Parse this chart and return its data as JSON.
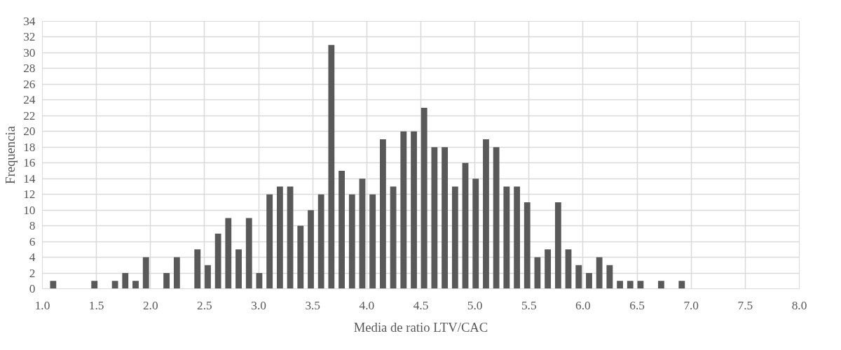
{
  "chart_data": {
    "type": "histogram",
    "xlabel": "Media de ratio LTV/CAC",
    "ylabel": "Frequencia",
    "color": "#595959",
    "bins": [
      1.052,
      1.147,
      1.243,
      1.338,
      1.433,
      1.529,
      1.624,
      1.719,
      1.814,
      1.91,
      2.005,
      2.1,
      2.196,
      2.291,
      2.386,
      2.482,
      2.577,
      2.672,
      2.767,
      2.863,
      2.958,
      3.053,
      3.149,
      3.244,
      3.339,
      3.435,
      3.53,
      3.625,
      3.72,
      3.816,
      3.911,
      4.006,
      4.102,
      4.197,
      4.292,
      4.388,
      4.483,
      4.578,
      4.673,
      4.769,
      4.864,
      4.959,
      5.055,
      5.15,
      5.245,
      5.341,
      5.436,
      5.531,
      5.626,
      5.722,
      5.817,
      5.912,
      6.008,
      6.103,
      6.198,
      6.294,
      6.389,
      6.484,
      6.579,
      6.675,
      6.77,
      6.865,
      6.961
    ],
    "values": [
      1,
      0,
      0,
      0,
      1,
      0,
      1,
      2,
      1,
      4,
      0,
      2,
      4,
      0,
      5,
      3,
      7,
      9,
      5,
      9,
      2,
      12,
      13,
      13,
      8,
      10,
      12,
      31,
      15,
      12,
      14,
      12,
      19,
      13,
      20,
      20,
      23,
      18,
      18,
      13,
      16,
      14,
      19,
      18,
      13,
      13,
      11,
      4,
      5,
      11,
      5,
      3,
      2,
      4,
      3,
      1,
      1,
      1,
      0,
      1,
      0,
      1
    ],
    "xlim": [
      1.0,
      8.0
    ],
    "xticks": [
      {
        "value": 1.0,
        "label": "1.0"
      },
      {
        "value": 1.5,
        "label": "1.5"
      },
      {
        "value": 2.0,
        "label": "2.0"
      },
      {
        "value": 2.5,
        "label": "2.5"
      },
      {
        "value": 3.0,
        "label": "3.0"
      },
      {
        "value": 3.5,
        "label": "3.5"
      },
      {
        "value": 4.0,
        "label": "4.0"
      },
      {
        "value": 4.5,
        "label": "4.5"
      },
      {
        "value": 5.0,
        "label": "5.0"
      },
      {
        "value": 5.5,
        "label": "5.5"
      },
      {
        "value": 6.0,
        "label": "6.0"
      },
      {
        "value": 6.5,
        "label": "6.5"
      },
      {
        "value": 7.0,
        "label": "7.0"
      },
      {
        "value": 7.5,
        "label": "7.5"
      },
      {
        "value": 8.0,
        "label": "8.0"
      }
    ],
    "ylim": [
      0,
      34
    ],
    "yticks": [
      0,
      2,
      4,
      6,
      8,
      10,
      12,
      14,
      16,
      18,
      20,
      22,
      24,
      26,
      28,
      30,
      32,
      34
    ],
    "grid": true
  }
}
